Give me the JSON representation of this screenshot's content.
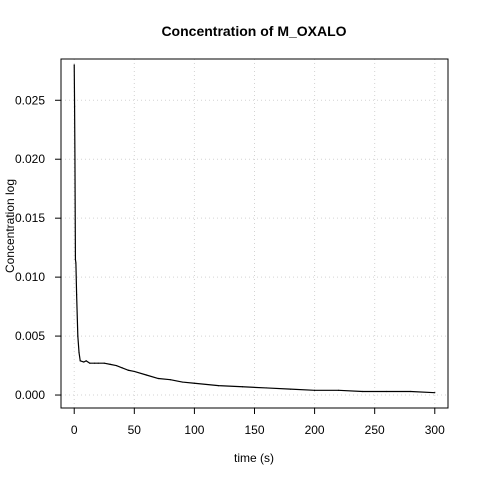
{
  "chart_data": {
    "type": "line",
    "title": "Concentration of M_OXALO",
    "xlabel": "time (s)",
    "ylabel": "Concentration log",
    "xlim": [
      -11,
      311
    ],
    "ylim": [
      -0.0011,
      0.0285
    ],
    "xticks": [
      0,
      50,
      100,
      150,
      200,
      250,
      300
    ],
    "yticks": [
      0.0,
      0.005,
      0.01,
      0.015,
      0.02,
      0.025
    ],
    "xtick_labels": [
      "0",
      "50",
      "100",
      "150",
      "200",
      "250",
      "300"
    ],
    "ytick_labels": [
      "0.000",
      "0.005",
      "0.010",
      "0.015",
      "0.020",
      "0.025"
    ],
    "grid": true,
    "colors": {
      "line": "#000000",
      "grid": "#d3d3d3",
      "frame": "#000000"
    },
    "series": [
      {
        "values": [
          [
            0.0,
            0.028
          ],
          [
            0.3,
            0.0245
          ],
          [
            0.6,
            0.02
          ],
          [
            1.0,
            0.0115
          ],
          [
            1.4,
            0.0112
          ],
          [
            2.0,
            0.0085
          ],
          [
            3.0,
            0.005
          ],
          [
            4.0,
            0.0036
          ],
          [
            5.0,
            0.0029
          ],
          [
            8.0,
            0.0028
          ],
          [
            10.0,
            0.0029
          ],
          [
            13.0,
            0.0027
          ],
          [
            17.0,
            0.0027
          ],
          [
            20.0,
            0.0027
          ],
          [
            25.0,
            0.0027
          ],
          [
            30.0,
            0.0026
          ],
          [
            35.0,
            0.0025
          ],
          [
            40.0,
            0.0023
          ],
          [
            45.0,
            0.0021
          ],
          [
            50.0,
            0.002
          ],
          [
            60.0,
            0.0017
          ],
          [
            70.0,
            0.0014
          ],
          [
            80.0,
            0.0013
          ],
          [
            90.0,
            0.0011
          ],
          [
            100.0,
            0.001
          ],
          [
            120.0,
            0.0008
          ],
          [
            140.0,
            0.0007
          ],
          [
            160.0,
            0.0006
          ],
          [
            180.0,
            0.0005
          ],
          [
            200.0,
            0.0004
          ],
          [
            220.0,
            0.0004
          ],
          [
            240.0,
            0.0003
          ],
          [
            260.0,
            0.0003
          ],
          [
            280.0,
            0.0003
          ],
          [
            300.0,
            0.0002
          ]
        ]
      }
    ]
  }
}
